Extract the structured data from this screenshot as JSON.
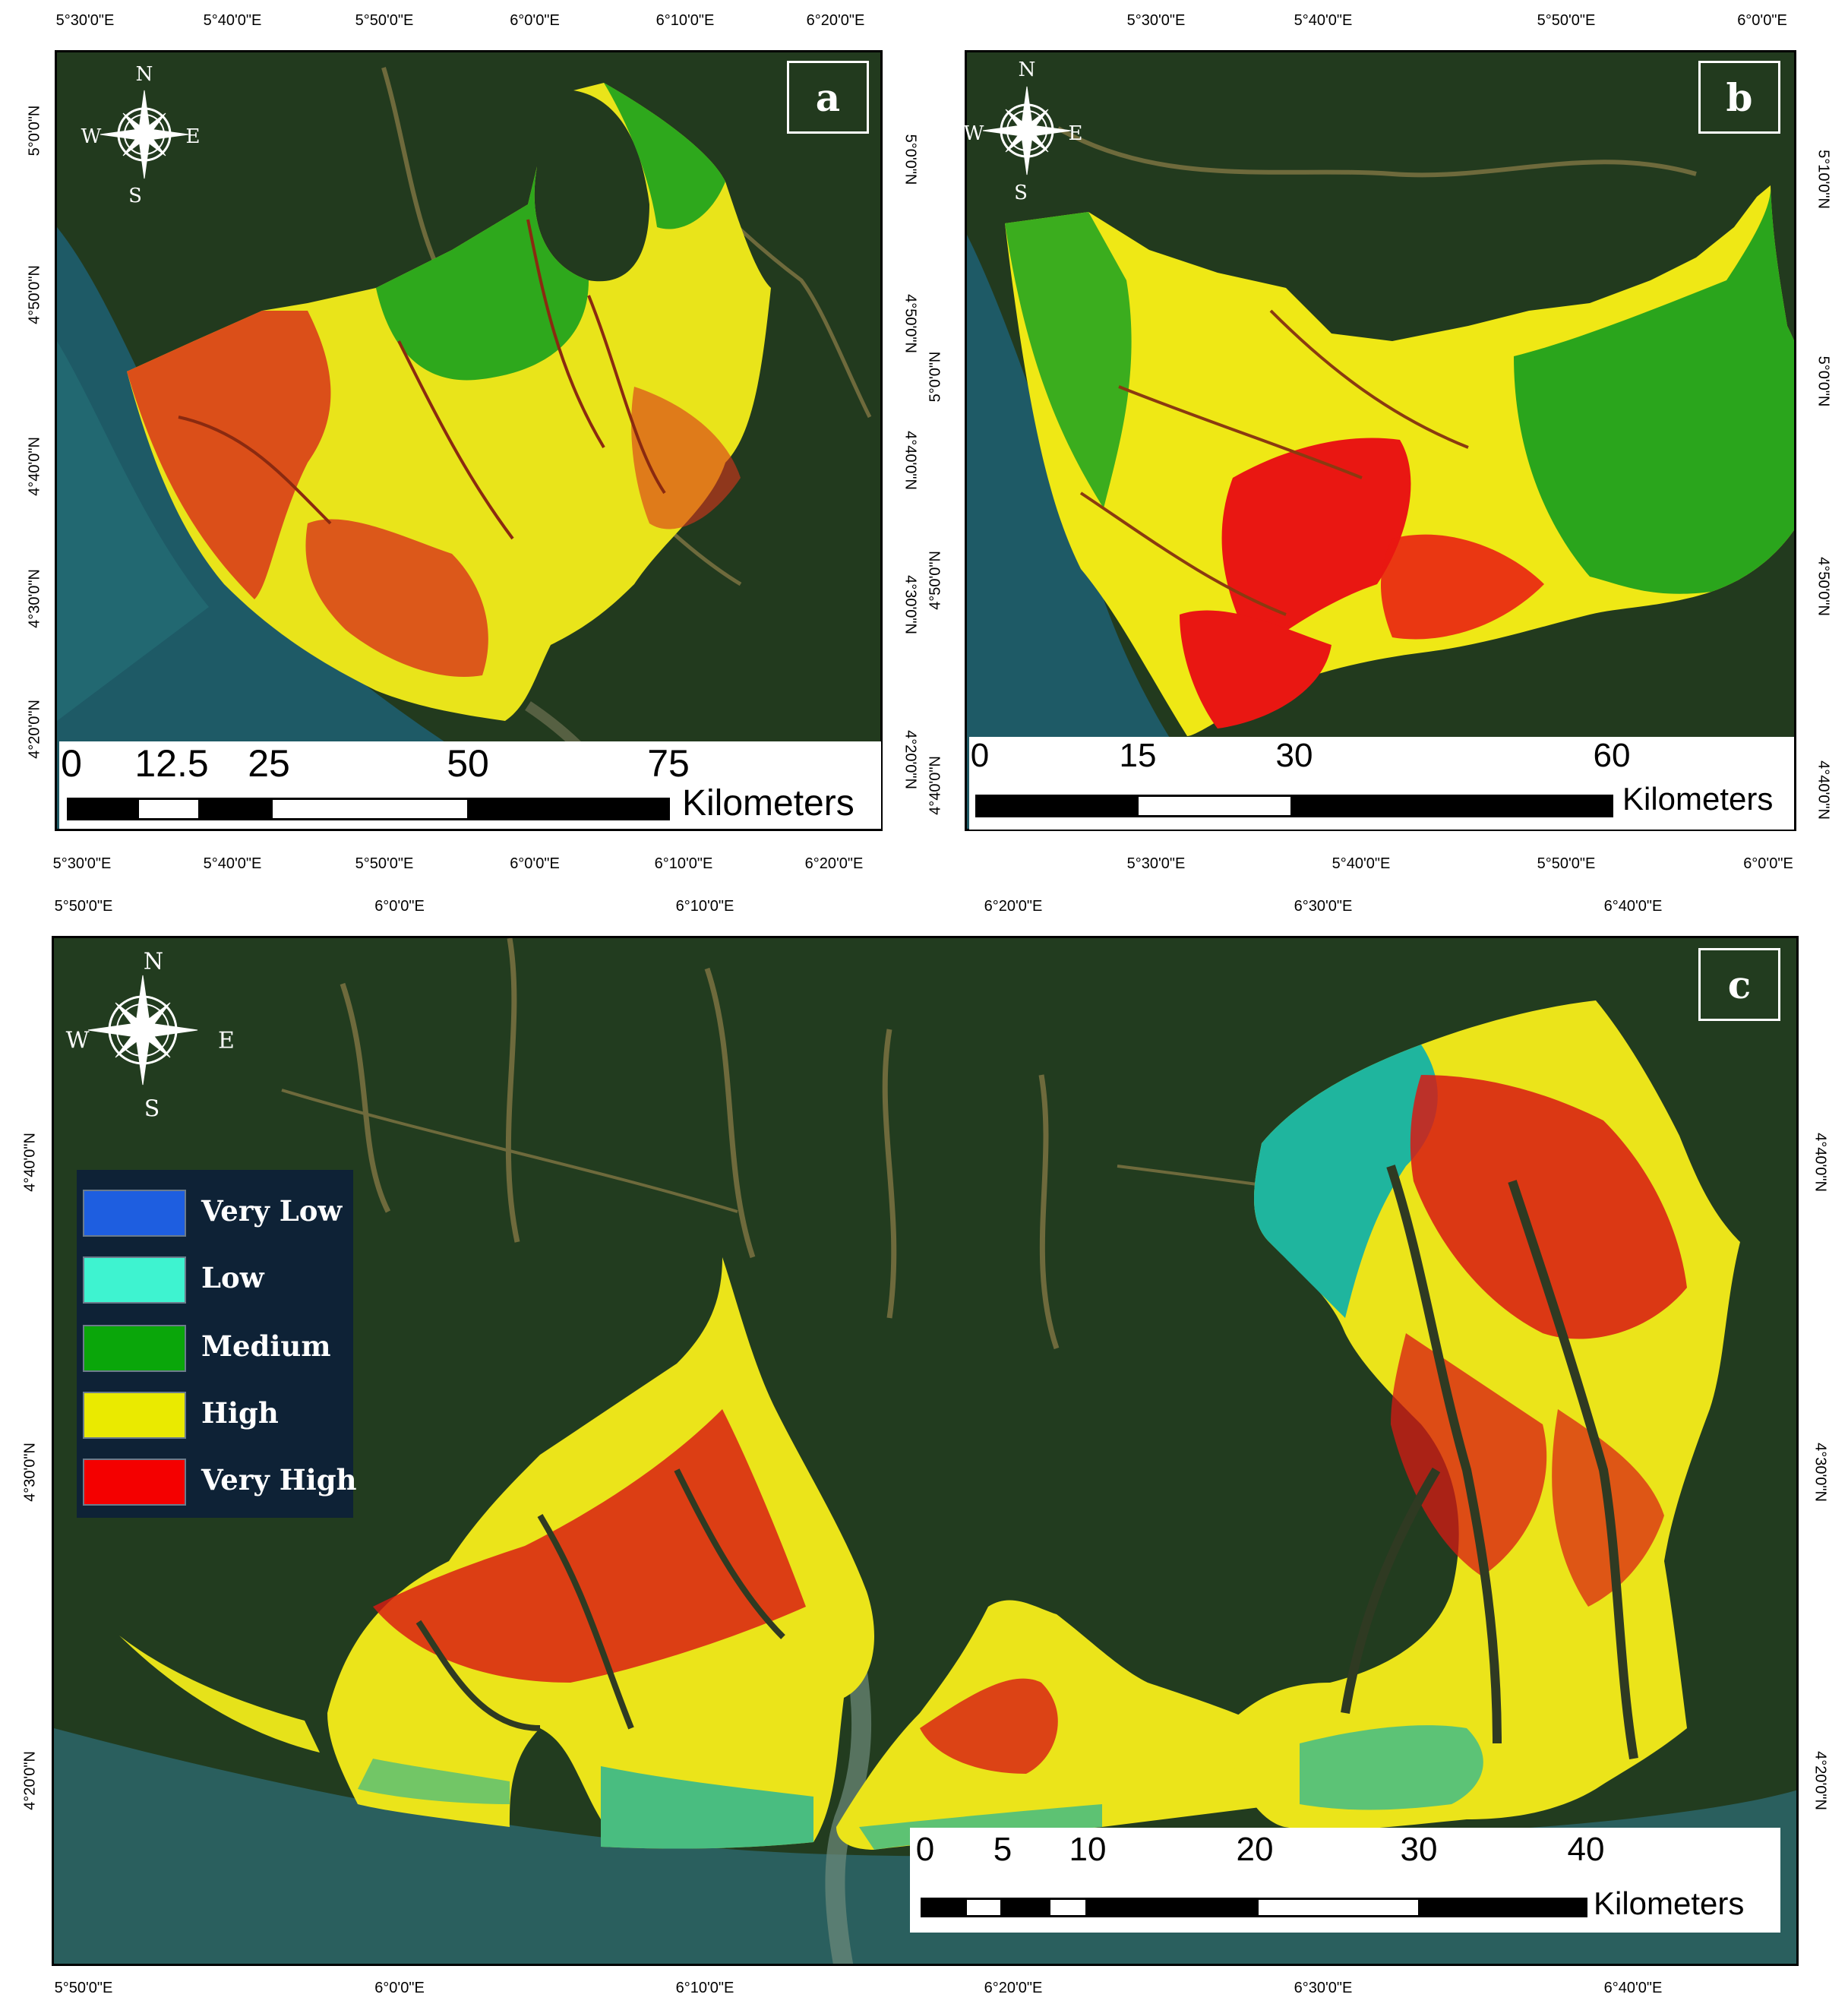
{
  "panels": {
    "a": {
      "label": "a",
      "top_ticks": [
        "5°30'0\"E",
        "5°40'0\"E",
        "5°50'0\"E",
        "6°0'0\"E",
        "6°10'0\"E",
        "6°20'0\"E"
      ],
      "bottom_ticks": [
        "5°30'0\"E",
        "5°40'0\"E",
        "5°50'0\"E",
        "6°0'0\"E",
        "6°10'0\"E",
        "6°20'0\"E"
      ],
      "left_ticks": [
        "5°0'0\"N",
        "4°50'0\"N",
        "4°40'0\"N",
        "4°30'0\"N",
        "4°20'0\"N"
      ],
      "right_ticks": [
        "5°0'0\"N",
        "4°50'0\"N",
        "4°40'0\"N",
        "4°30'0\"N",
        "4°20'0\"N"
      ],
      "scale_values": [
        "0",
        "12.5",
        "25",
        "50",
        "75"
      ],
      "scale_unit": "Kilometers",
      "compass": {
        "n": "N",
        "s": "S",
        "e": "E",
        "w": "W"
      }
    },
    "b": {
      "label": "b",
      "top_ticks": [
        "5°30'0\"E",
        "5°40'0\"E",
        "5°50'0\"E",
        "6°0'0\"E"
      ],
      "bottom_ticks": [
        "5°30'0\"E",
        "5°40'0\"E",
        "5°50'0\"E",
        "6°0'0\"E"
      ],
      "left_ticks": [
        "5°0'0\"N",
        "4°50'0\"N",
        "4°40'0\"N"
      ],
      "right_ticks": [
        "5°10'0\"N",
        "5°0'0\"N",
        "4°50'0\"N",
        "4°40'0\"N"
      ],
      "scale_values": [
        "0",
        "15",
        "30",
        "60"
      ],
      "scale_unit": "Kilometers",
      "compass": {
        "n": "N",
        "s": "S",
        "e": "E",
        "w": "W"
      }
    },
    "c": {
      "label": "c",
      "top_ticks": [
        "5°50'0\"E",
        "6°0'0\"E",
        "6°10'0\"E",
        "6°20'0\"E",
        "6°30'0\"E",
        "6°40'0\"E"
      ],
      "bottom_ticks": [
        "5°50'0\"E",
        "6°0'0\"E",
        "6°10'0\"E",
        "6°20'0\"E",
        "6°30'0\"E",
        "6°40'0\"E"
      ],
      "left_ticks": [
        "4°40'0\"N",
        "4°30'0\"N",
        "4°20'0\"N"
      ],
      "right_ticks": [
        "4°40'0\"N",
        "4°30'0\"N",
        "4°20'0\"N"
      ],
      "scale_values": [
        "0",
        "5",
        "10",
        "20",
        "30",
        "40"
      ],
      "scale_unit": "Kilometers",
      "compass": {
        "n": "N",
        "s": "S",
        "e": "E",
        "w": "W"
      }
    }
  },
  "legend": {
    "items": [
      {
        "label": "Very Low",
        "color": "#1e5ee0"
      },
      {
        "label": "Low",
        "color": "#3ef3d0"
      },
      {
        "label": "Medium",
        "color": "#0aa60a"
      },
      {
        "label": "High",
        "color": "#eaea00"
      },
      {
        "label": "Very High",
        "color": "#f40000"
      }
    ]
  },
  "colors": {
    "satellite_land": "#1f3a1c",
    "satellite_water": "#1d5e6a",
    "river": "#7c6a3a",
    "very_high": "#e01010",
    "high": "#f0ea10",
    "medium": "#22a81c",
    "low": "#22b8a0"
  }
}
